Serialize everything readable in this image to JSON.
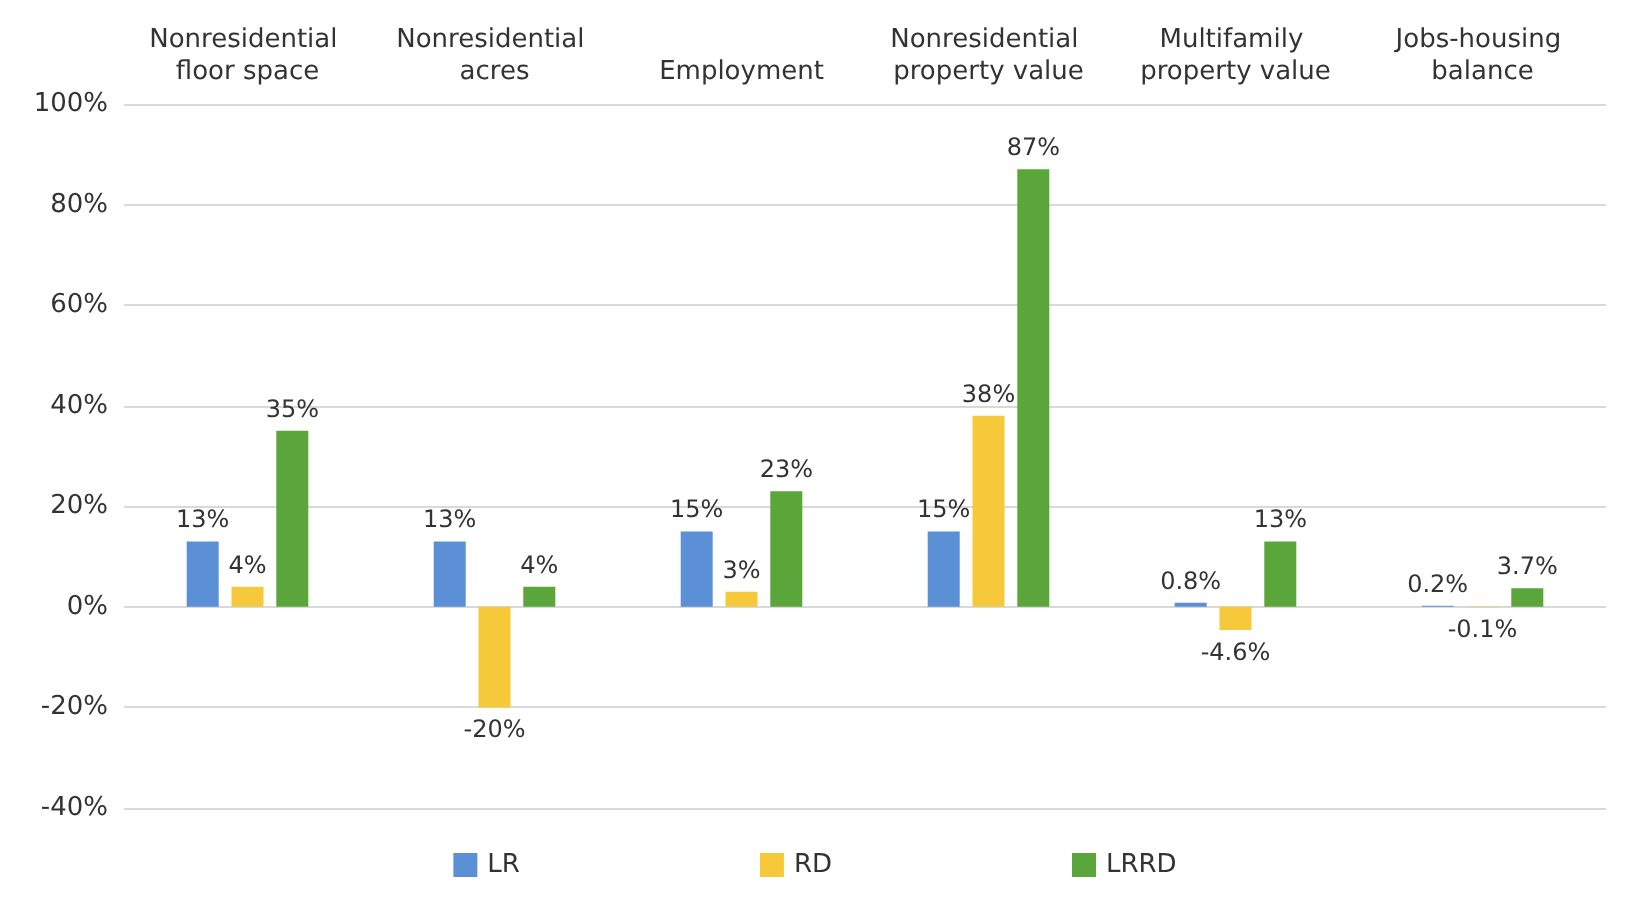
{
  "chart_data": {
    "type": "bar",
    "categories": [
      "Nonresidential floor space",
      "Nonresidential acres",
      "Employment",
      "Nonresidential property value",
      "Multifamily property value",
      "Jobs-housing balance"
    ],
    "series": [
      {
        "name": "LR",
        "color": "#5b8fd6",
        "values": [
          13,
          13,
          15,
          15,
          0.8,
          0.2
        ],
        "value_labels": [
          "13%",
          "13%",
          "15%",
          "15%",
          "0.8%",
          "0.2%"
        ]
      },
      {
        "name": "RD",
        "color": "#f5c93a",
        "values": [
          4,
          -20,
          3,
          38,
          -4.6,
          -0.1
        ],
        "value_labels": [
          "4%",
          "-20%",
          "3%",
          "38%",
          "-4.6%",
          "-0.1%"
        ]
      },
      {
        "name": "LRRD",
        "color": "#5aa63a",
        "values": [
          35,
          4,
          23,
          87,
          13,
          3.7
        ],
        "value_labels": [
          "35%",
          "4%",
          "23%",
          "87%",
          "13%",
          "3.7%"
        ]
      }
    ],
    "ylim": [
      -40,
      100
    ],
    "yticks": [
      {
        "value": -40,
        "label": "-40%"
      },
      {
        "value": -20,
        "label": "-20%"
      },
      {
        "value": 0,
        "label": "0%"
      },
      {
        "value": 20,
        "label": "20%"
      },
      {
        "value": 40,
        "label": "40%"
      },
      {
        "value": 60,
        "label": "60%"
      },
      {
        "value": 80,
        "label": "80%"
      },
      {
        "value": 100,
        "label": "100%"
      }
    ],
    "grid": "y",
    "legend": "bottom"
  }
}
